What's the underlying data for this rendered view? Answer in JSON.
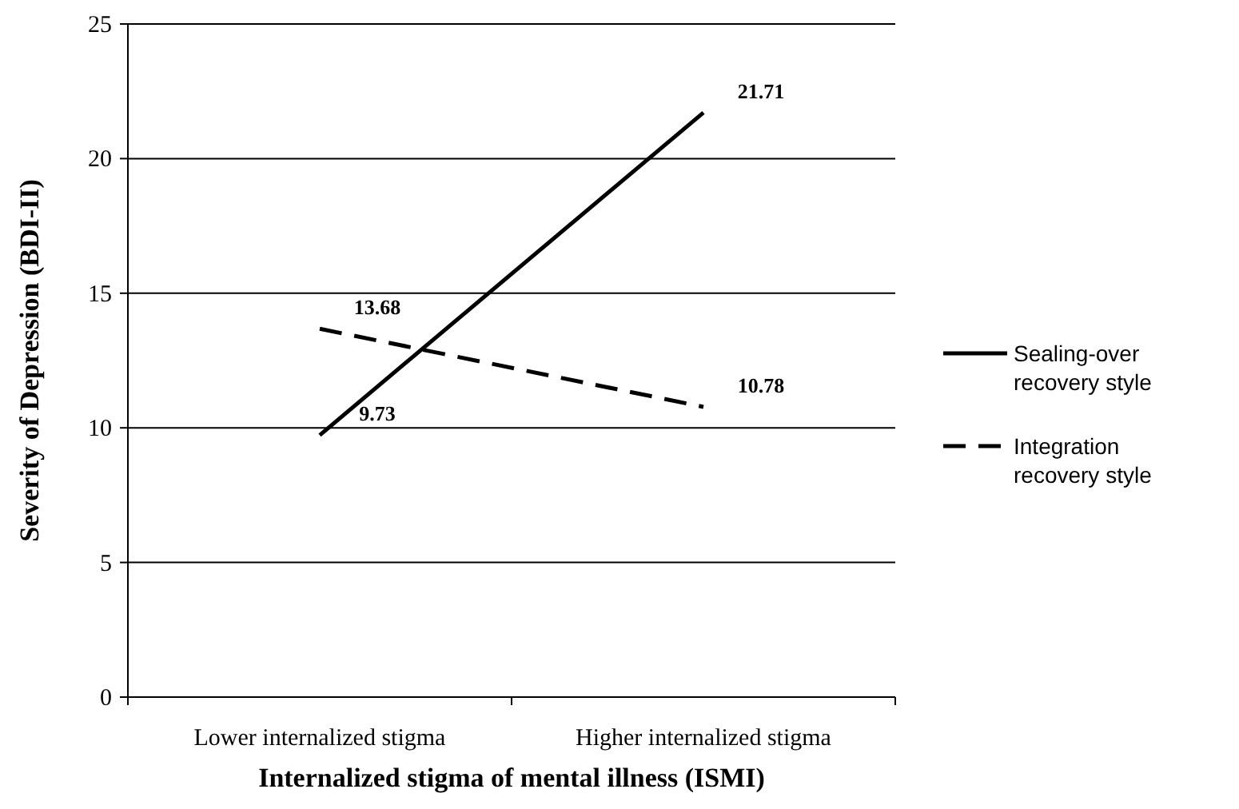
{
  "chart_data": {
    "type": "line",
    "xlabel": "Internalized stigma of mental illness (ISMI)",
    "ylabel": "Severity of Depression (BDI-II)",
    "categories": [
      "Lower internalized stigma",
      "Higher internalized stigma"
    ],
    "series": [
      {
        "name": "Sealing-over recovery style",
        "color": "#000000",
        "values": [
          9.73,
          21.71
        ],
        "line_style": "solid"
      },
      {
        "name": "Integration recovery style",
        "color": "#000000",
        "values": [
          13.68,
          10.78
        ],
        "line_style": "dashed"
      }
    ],
    "ylim": [
      0,
      25
    ],
    "yticks": [
      0,
      5,
      10,
      15,
      20,
      25
    ],
    "grid": "y",
    "legend": "right",
    "marker": "none",
    "data_labels": true
  }
}
